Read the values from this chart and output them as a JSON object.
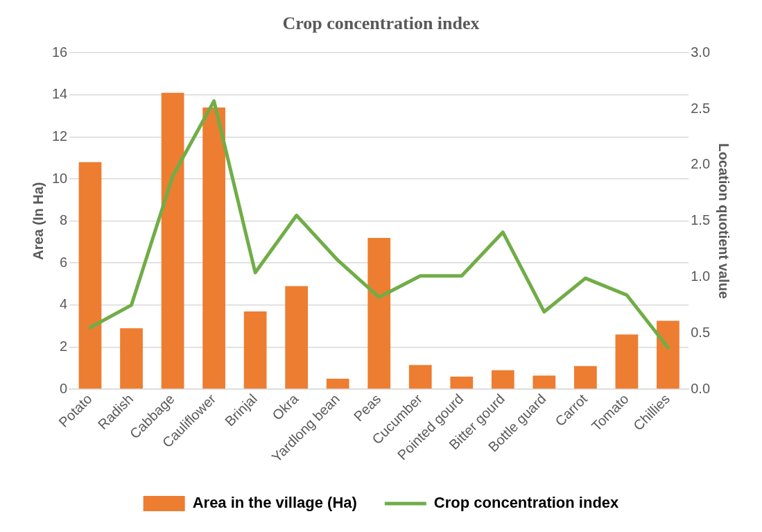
{
  "chart_data": {
    "type": "bar",
    "title": "Crop concentration index",
    "ylabel": "Area (In Ha)",
    "y2label": "Location quotient value",
    "categories": [
      "Potato",
      "Radish",
      "Cabbage",
      "Cauliflower",
      "Brinjal",
      "Okra",
      "Yardlong bean",
      "Peas",
      "Cucumber",
      "Pointed gourd",
      "Bitter gourd",
      "Bottle guard",
      "Carrot",
      "Tomato",
      "Chillies"
    ],
    "series": [
      {
        "name": "Area in the village (Ha)",
        "color": "#ed7d31",
        "values": [
          10.8,
          2.9,
          14.1,
          13.4,
          3.7,
          4.9,
          0.5,
          7.2,
          1.15,
          0.6,
          0.9,
          0.65,
          1.1,
          2.6,
          3.25
        ]
      },
      {
        "name": "Crop concentration index",
        "type": "line",
        "axis": "y2",
        "color": "#70ad47",
        "values": [
          0.55,
          0.75,
          1.9,
          2.57,
          1.04,
          1.55,
          1.15,
          0.82,
          1.01,
          1.01,
          1.4,
          0.69,
          0.99,
          0.84,
          0.37
        ]
      }
    ],
    "ylim": [
      0,
      16
    ],
    "yticks": [
      0,
      2,
      4,
      6,
      8,
      10,
      12,
      14,
      16
    ],
    "y2lim": [
      0,
      3
    ],
    "y2ticks": [
      {
        "value": 0,
        "label": "0.0"
      },
      {
        "value": 0.5,
        "label": "0.5"
      },
      {
        "value": 1,
        "label": "1.0"
      },
      {
        "value": 1.5,
        "label": "1.5"
      },
      {
        "value": 2,
        "label": "2.0"
      },
      {
        "value": 2.5,
        "label": "2.5"
      },
      {
        "value": 3,
        "label": "3.0"
      }
    ],
    "grid": "y",
    "legend": "bottom",
    "marker": "none",
    "line_style": "solid"
  }
}
